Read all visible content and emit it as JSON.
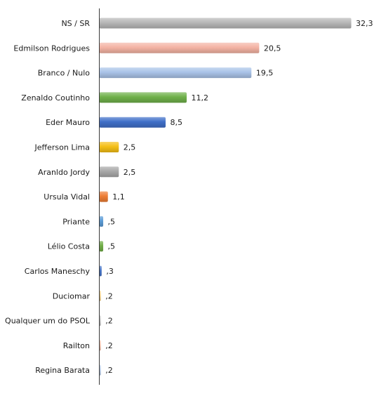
{
  "chart_data": {
    "type": "bar",
    "orientation": "horizontal",
    "categories": [
      "NS / SR",
      "Edmilson Rodrigues",
      "Branco / Nulo",
      "Zenaldo Coutinho",
      "Eder Mauro",
      "Jefferson Lima",
      "Aranldo Jordy",
      "Ursula Vidal",
      "Priante",
      "Lélio Costa",
      "Carlos Maneschy",
      "Duciomar",
      "Qualquer um do PSOL",
      "Railton",
      "Regina Barata"
    ],
    "values": [
      32.3,
      20.5,
      19.5,
      11.2,
      8.5,
      2.5,
      2.5,
      1.1,
      0.5,
      0.5,
      0.3,
      0.2,
      0.2,
      0.2,
      0.2
    ],
    "value_labels": [
      "32,3",
      "20,5",
      "19,5",
      "11,2",
      "8,5",
      "2,5",
      "2,5",
      "1,1",
      ",5",
      ",5",
      ",3",
      ",2",
      ",2",
      ",2",
      ",2"
    ],
    "colors": [
      "#b7b7b7",
      "#f4b3a4",
      "#a9c3e8",
      "#6fb04a",
      "#3f6fc8",
      "#f5bf16",
      "#a8a8a8",
      "#ee7d35",
      "#5b9bd5",
      "#70ad47",
      "#4472c4",
      "#f2d08a",
      "#c8c8c8",
      "#f3c2ad",
      "#b7cbe6"
    ],
    "xlim": [
      0,
      32.3
    ],
    "title": "",
    "xlabel": "",
    "ylabel": "",
    "grid": false,
    "legend": "none"
  }
}
